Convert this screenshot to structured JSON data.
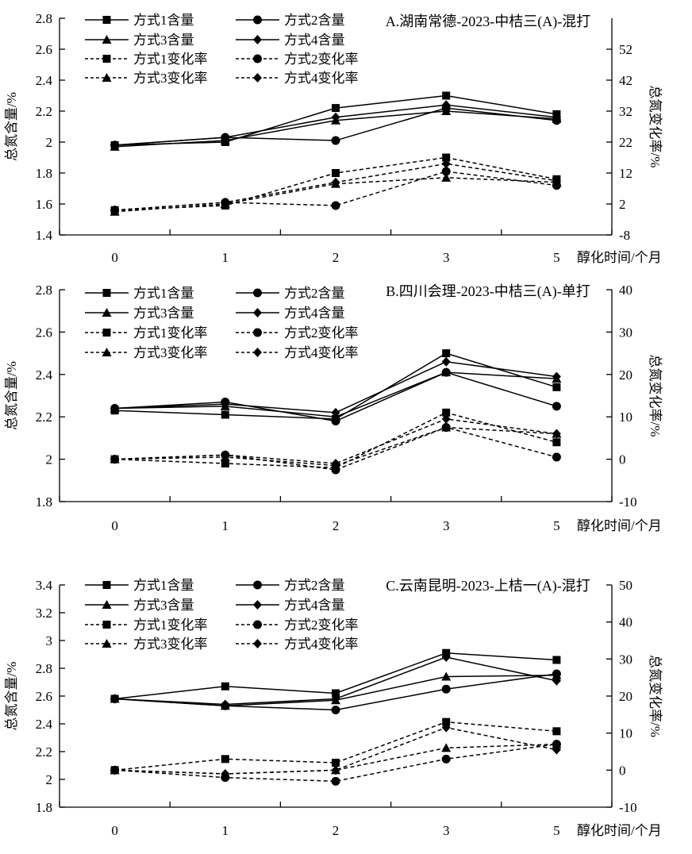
{
  "figure": {
    "background": "#ffffff",
    "ink_color": "#000000",
    "x_axis_title": "醇化时间/个月",
    "left_axis_title": "总氮含量/%",
    "right_axis_title": "总氮变化率/%"
  },
  "chart_data": [
    {
      "type": "line",
      "panel_label": "A",
      "title": "A.湖南常德-2023-中桔三(A)-混打",
      "x_categories": [
        "0",
        "1",
        "2",
        "3",
        "5"
      ],
      "xlabel": "醇化时间/个月",
      "legend_position": "top-left-two-columns",
      "grid": false,
      "left_axis": {
        "label": "总氮含量/%",
        "range": [
          1.4,
          2.8
        ],
        "tick_values": [
          2.8,
          2.6,
          2.4,
          2.2,
          2.0,
          1.8,
          1.6,
          1.4
        ],
        "tick_labels": [
          "2.8",
          "2.6",
          "2.4",
          "2.2",
          "2",
          "1.8",
          "1.6",
          "1.4"
        ]
      },
      "right_axis": {
        "label": "总氮变化率/%",
        "range": [
          -8,
          62
        ],
        "tick_values": [
          52,
          42,
          32,
          22,
          12,
          2,
          -8
        ],
        "tick_labels": [
          "52",
          "42",
          "32",
          "22",
          "12",
          "2",
          "-8"
        ]
      },
      "series": [
        {
          "name": "方式1含量",
          "marker": "square",
          "line": "solid",
          "axis": "left",
          "values": [
            1.98,
            2.0,
            2.22,
            2.3,
            2.18
          ]
        },
        {
          "name": "方式2含量",
          "marker": "circle",
          "line": "solid",
          "axis": "left",
          "values": [
            1.98,
            2.03,
            2.01,
            2.22,
            2.14
          ]
        },
        {
          "name": "方式3含量",
          "marker": "triangle",
          "line": "solid",
          "axis": "left",
          "values": [
            1.97,
            2.01,
            2.14,
            2.2,
            2.15
          ]
        },
        {
          "name": "方式4含量",
          "marker": "diamond",
          "line": "solid",
          "axis": "left",
          "values": [
            1.98,
            2.03,
            2.16,
            2.24,
            2.16
          ]
        },
        {
          "name": "方式1变化率",
          "marker": "square",
          "line": "dashed",
          "axis": "right",
          "values": [
            0,
            1.5,
            12,
            17,
            10
          ]
        },
        {
          "name": "方式2变化率",
          "marker": "circle",
          "line": "dashed",
          "axis": "right",
          "values": [
            0,
            2.5,
            1.5,
            12.5,
            8
          ]
        },
        {
          "name": "方式3变化率",
          "marker": "triangle",
          "line": "dashed",
          "axis": "right",
          "values": [
            -0.5,
            2,
            8.5,
            10.5,
            9
          ]
        },
        {
          "name": "方式4变化率",
          "marker": "diamond",
          "line": "dashed",
          "axis": "right",
          "values": [
            0,
            2.5,
            9,
            15,
            9.5
          ]
        }
      ]
    },
    {
      "type": "line",
      "panel_label": "B",
      "title": "B.四川会理-2023-中桔三(A)-单打",
      "x_categories": [
        "0",
        "1",
        "2",
        "3",
        "5"
      ],
      "xlabel": "醇化时间/个月",
      "legend_position": "top-left-two-columns",
      "grid": false,
      "left_axis": {
        "label": "总氮含量/%",
        "range": [
          1.8,
          2.8
        ],
        "tick_values": [
          2.8,
          2.6,
          2.4,
          2.2,
          2.0,
          1.8
        ],
        "tick_labels": [
          "2.8",
          "2.6",
          "2.4",
          "2.2",
          "2",
          "1.8"
        ]
      },
      "right_axis": {
        "label": "总氮变化率/%",
        "range": [
          -10,
          40
        ],
        "tick_values": [
          40,
          30,
          20,
          10,
          0,
          -10
        ],
        "tick_labels": [
          "40",
          "30",
          "20",
          "10",
          "0",
          "-10"
        ]
      },
      "series": [
        {
          "name": "方式1含量",
          "marker": "square",
          "line": "solid",
          "axis": "left",
          "values": [
            2.23,
            2.21,
            2.19,
            2.5,
            2.34
          ]
        },
        {
          "name": "方式2含量",
          "marker": "circle",
          "line": "solid",
          "axis": "left",
          "values": [
            2.24,
            2.27,
            2.18,
            2.41,
            2.25
          ]
        },
        {
          "name": "方式3含量",
          "marker": "triangle",
          "line": "solid",
          "axis": "left",
          "values": [
            2.24,
            2.25,
            2.2,
            2.41,
            2.38
          ]
        },
        {
          "name": "方式4含量",
          "marker": "diamond",
          "line": "solid",
          "axis": "left",
          "values": [
            2.24,
            2.26,
            2.22,
            2.46,
            2.39
          ]
        },
        {
          "name": "方式1变化率",
          "marker": "square",
          "line": "dashed",
          "axis": "right",
          "values": [
            0,
            -1,
            -2,
            11,
            4
          ]
        },
        {
          "name": "方式2变化率",
          "marker": "circle",
          "line": "dashed",
          "axis": "right",
          "values": [
            0,
            1,
            -2.5,
            7.5,
            0.5
          ]
        },
        {
          "name": "方式3变化率",
          "marker": "triangle",
          "line": "dashed",
          "axis": "right",
          "values": [
            0,
            0.5,
            -1.5,
            7.5,
            6
          ]
        },
        {
          "name": "方式4变化率",
          "marker": "diamond",
          "line": "dashed",
          "axis": "right",
          "values": [
            0,
            1,
            -1,
            9.5,
            6
          ]
        }
      ]
    },
    {
      "type": "line",
      "panel_label": "C",
      "title": "C.云南昆明-2023-上桔一(A)-混打",
      "x_categories": [
        "0",
        "1",
        "2",
        "3",
        "5"
      ],
      "xlabel": "醇化时间/个月",
      "legend_position": "top-left-two-columns",
      "grid": false,
      "left_axis": {
        "label": "总氮含量/%",
        "range": [
          1.8,
          3.4
        ],
        "tick_values": [
          3.4,
          3.2,
          3.0,
          2.8,
          2.6,
          2.4,
          2.2,
          2.0,
          1.8
        ],
        "tick_labels": [
          "3.4",
          "3.2",
          "3",
          "2.8",
          "2.6",
          "2.4",
          "2.2",
          "2",
          "1.8"
        ]
      },
      "right_axis": {
        "label": "总氮变化率/%",
        "range": [
          -10,
          50
        ],
        "tick_values": [
          50,
          40,
          30,
          20,
          10,
          0,
          -10
        ],
        "tick_labels": [
          "50",
          "40",
          "30",
          "20",
          "10",
          "0",
          "-10"
        ]
      },
      "series": [
        {
          "name": "方式1含量",
          "marker": "square",
          "line": "solid",
          "axis": "left",
          "values": [
            2.58,
            2.67,
            2.62,
            2.91,
            2.86
          ]
        },
        {
          "name": "方式2含量",
          "marker": "circle",
          "line": "solid",
          "axis": "left",
          "values": [
            2.58,
            2.53,
            2.5,
            2.65,
            2.76
          ]
        },
        {
          "name": "方式3含量",
          "marker": "triangle",
          "line": "solid",
          "axis": "left",
          "values": [
            2.58,
            2.53,
            2.57,
            2.74,
            2.75
          ]
        },
        {
          "name": "方式4含量",
          "marker": "diamond",
          "line": "solid",
          "axis": "left",
          "values": [
            2.58,
            2.54,
            2.58,
            2.88,
            2.71
          ]
        },
        {
          "name": "方式1变化率",
          "marker": "square",
          "line": "dashed",
          "axis": "right",
          "values": [
            0,
            3,
            2,
            13,
            10.5
          ]
        },
        {
          "name": "方式2变化率",
          "marker": "circle",
          "line": "dashed",
          "axis": "right",
          "values": [
            0,
            -2,
            -3,
            3,
            7
          ]
        },
        {
          "name": "方式3变化率",
          "marker": "triangle",
          "line": "dashed",
          "axis": "right",
          "values": [
            0,
            -1,
            0,
            6,
            7
          ]
        },
        {
          "name": "方式4变化率",
          "marker": "diamond",
          "line": "dashed",
          "axis": "right",
          "values": [
            0,
            -1,
            0,
            11.5,
            5.5
          ]
        }
      ]
    }
  ]
}
